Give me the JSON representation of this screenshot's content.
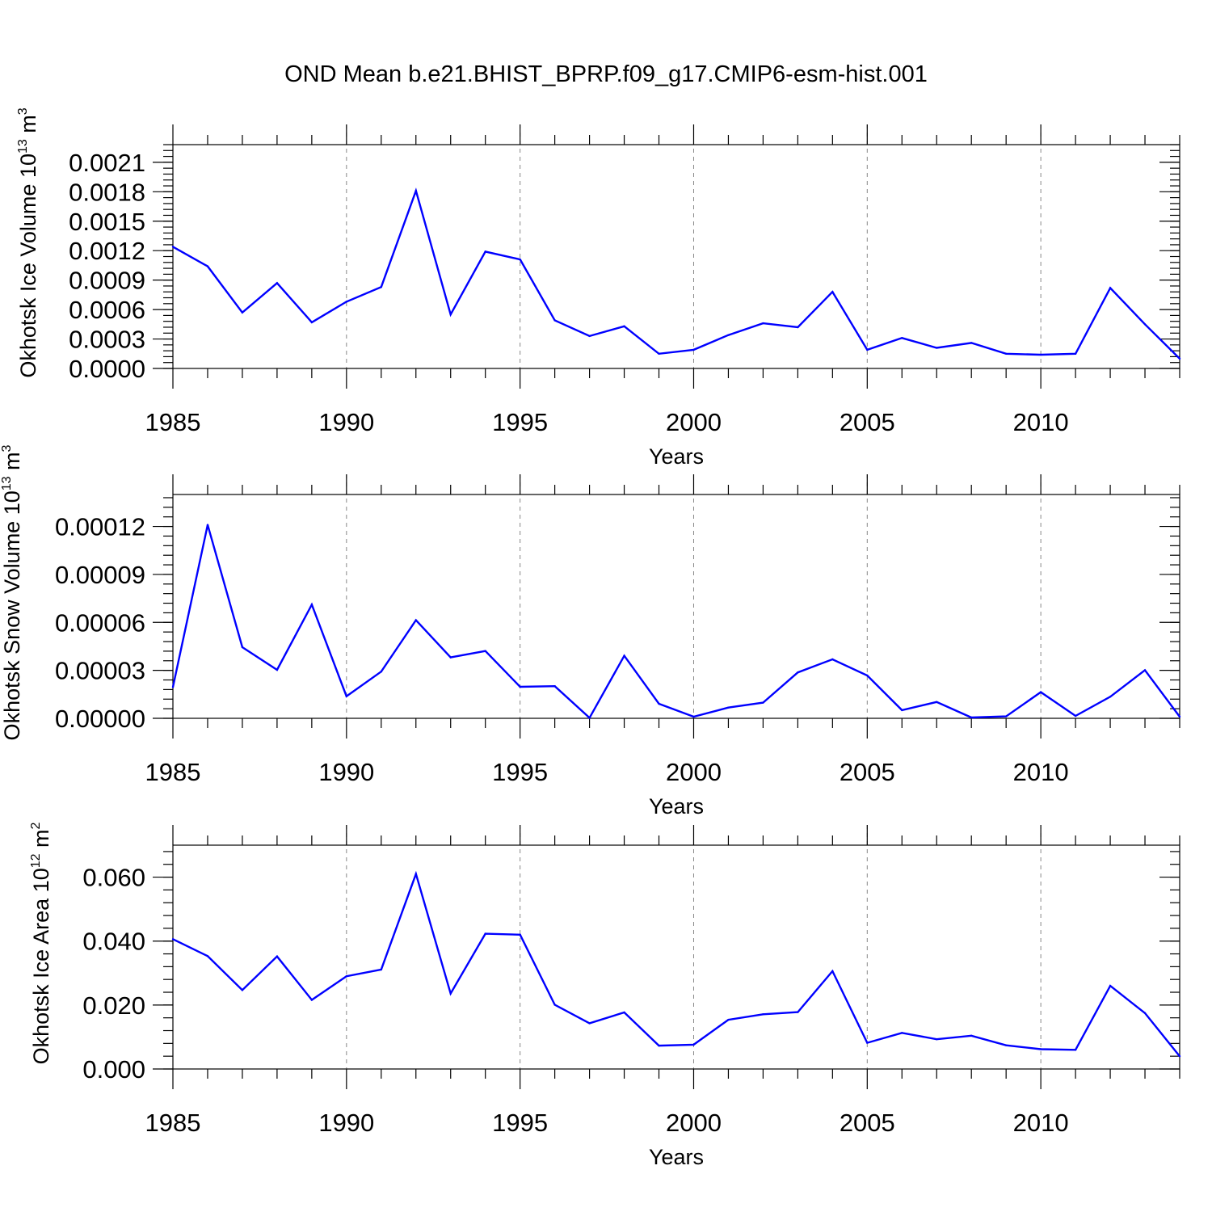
{
  "title": "OND Mean b.e21.BHIST_BPRP.f09_g17.CMIP6-esm-hist.001",
  "colors": {
    "line": "#0000ff",
    "axis": "#000000",
    "grid": "#888888"
  },
  "chart_data": [
    {
      "type": "line",
      "title": "",
      "xlabel": "Years",
      "ylabel": {
        "base": "Okhotsk Ice Volume 10",
        "exp1": "13",
        "unit": " m",
        "exp2": "3"
      },
      "xlim": [
        1985,
        2014
      ],
      "ylim": [
        0,
        0.00228
      ],
      "xticks": [
        "1985",
        "1990",
        "1995",
        "2000",
        "2005",
        "2010"
      ],
      "yticks": [
        "0.0000",
        "0.0003",
        "0.0006",
        "0.0009",
        "0.0012",
        "0.0015",
        "0.0018",
        "0.0021"
      ],
      "ytick_values": [
        0,
        0.0003,
        0.0006,
        0.0009,
        0.0012,
        0.0015,
        0.0018,
        0.0021
      ],
      "grid_x": [
        1990,
        1995,
        2000,
        2005,
        2010
      ],
      "x": [
        1985,
        1986,
        1987,
        1988,
        1989,
        1990,
        1991,
        1992,
        1993,
        1994,
        1995,
        1996,
        1997,
        1998,
        1999,
        2000,
        2001,
        2002,
        2003,
        2004,
        2005,
        2006,
        2007,
        2008,
        2009,
        2010,
        2011,
        2012,
        2013,
        2014
      ],
      "values": [
        0.00124,
        0.00104,
        0.00057,
        0.00087,
        0.00047,
        0.00068,
        0.00083,
        0.00181,
        0.00055,
        0.00119,
        0.00111,
        0.00049,
        0.00033,
        0.00043,
        0.00015,
        0.00019,
        0.00034,
        0.00046,
        0.00042,
        0.00078,
        0.00019,
        0.00031,
        0.00021,
        0.00026,
        0.00015,
        0.00014,
        0.00015,
        0.00082,
        0.00045,
        0.0001
      ]
    },
    {
      "type": "line",
      "title": "",
      "xlabel": "Years",
      "ylabel": {
        "base": "Okhotsk Snow Volume 10",
        "exp1": "13",
        "unit": " m",
        "exp2": "3"
      },
      "xlim": [
        1985,
        2014
      ],
      "ylim": [
        0,
        0.00014
      ],
      "xticks": [
        "1985",
        "1990",
        "1995",
        "2000",
        "2005",
        "2010"
      ],
      "yticks": [
        "0.00000",
        "0.00003",
        "0.00006",
        "0.00009",
        "0.00012"
      ],
      "ytick_values": [
        0,
        3e-05,
        6e-05,
        9e-05,
        0.00012
      ],
      "grid_x": [
        1990,
        1995,
        2000,
        2005,
        2010
      ],
      "x": [
        1985,
        1986,
        1987,
        1988,
        1989,
        1990,
        1991,
        1992,
        1993,
        1994,
        1995,
        1996,
        1997,
        1998,
        1999,
        2000,
        2001,
        2002,
        2003,
        2004,
        2005,
        2006,
        2007,
        2008,
        2009,
        2010,
        2011,
        2012,
        2013,
        2014
      ],
      "values": [
        1.95e-05,
        0.000121,
        4.45e-05,
        3.03e-05,
        7.11e-05,
        1.38e-05,
        2.92e-05,
        6.14e-05,
        3.81e-05,
        4.21e-05,
        1.97e-05,
        2.01e-05,
        3e-07,
        3.91e-05,
        9.1e-06,
        1e-06,
        6.7e-06,
        9.8e-06,
        2.87e-05,
        3.69e-05,
        2.68e-05,
        5.1e-06,
        1.02e-05,
        5e-07,
        1.2e-06,
        1.64e-05,
        1.5e-06,
        1.35e-05,
        3.01e-05,
        1e-06
      ]
    },
    {
      "type": "line",
      "title": "",
      "xlabel": "Years",
      "ylabel": {
        "base": "Okhotsk Ice Area 10",
        "exp1": "12",
        "unit": " m",
        "exp2": "2"
      },
      "xlim": [
        1985,
        2014
      ],
      "ylim": [
        0,
        0.07
      ],
      "xticks": [
        "1985",
        "1990",
        "1995",
        "2000",
        "2005",
        "2010"
      ],
      "yticks": [
        "0.000",
        "0.020",
        "0.040",
        "0.060"
      ],
      "ytick_values": [
        0,
        0.02,
        0.04,
        0.06
      ],
      "grid_x": [
        1990,
        1995,
        2000,
        2005,
        2010
      ],
      "x": [
        1985,
        1986,
        1987,
        1988,
        1989,
        1990,
        1991,
        1992,
        1993,
        1994,
        1995,
        1996,
        1997,
        1998,
        1999,
        2000,
        2001,
        2002,
        2003,
        2004,
        2005,
        2006,
        2007,
        2008,
        2009,
        2010,
        2011,
        2012,
        2013,
        2014
      ],
      "values": [
        0.0406,
        0.0353,
        0.0247,
        0.0352,
        0.0216,
        0.029,
        0.0311,
        0.061,
        0.0236,
        0.0423,
        0.042,
        0.0201,
        0.0143,
        0.0177,
        0.0073,
        0.0076,
        0.0154,
        0.0171,
        0.0178,
        0.0306,
        0.0082,
        0.0113,
        0.0093,
        0.0104,
        0.0074,
        0.0062,
        0.006,
        0.026,
        0.0175,
        0.004
      ]
    }
  ]
}
